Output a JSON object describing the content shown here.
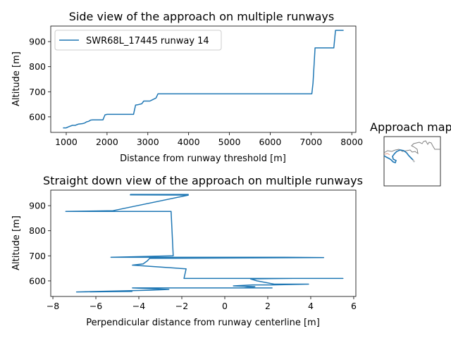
{
  "chart_data": [
    {
      "type": "line",
      "title": "Side view of the approach on multiple runways",
      "xlabel": "Distance from runway threshold [m]",
      "ylabel": "Altitude [m]",
      "xlim": [
        620,
        8100
      ],
      "ylim": [
        538,
        962
      ],
      "xticks": [
        1000,
        2000,
        3000,
        4000,
        5000,
        6000,
        7000,
        8000
      ],
      "yticks": [
        600,
        700,
        800,
        900
      ],
      "legend_position": "upper-left",
      "series": [
        {
          "name": "SWR68L_17445 runway 14",
          "color": "#1f77b4",
          "x": [
            920,
            1000,
            1050,
            1150,
            1220,
            1300,
            1400,
            1450,
            1500,
            1550,
            1600,
            1650,
            1900,
            1950,
            2000,
            2650,
            2700,
            2750,
            2850,
            2900,
            2950,
            3050,
            3100,
            3200,
            3250,
            4000,
            7020,
            7050,
            7100,
            7300,
            7560,
            7600,
            7800
          ],
          "y": [
            556,
            556,
            560,
            566,
            566,
            571,
            573,
            575,
            580,
            582,
            587,
            588,
            588,
            608,
            610,
            610,
            647,
            648,
            652,
            663,
            663,
            663,
            667,
            675,
            692,
            692,
            692,
            735,
            875,
            875,
            875,
            945,
            945
          ]
        }
      ]
    },
    {
      "type": "line",
      "title": "Straight down view of the approach on multiple runways",
      "xlabel": "Perpendicular distance from runway centerline [m]",
      "ylabel": "Altitude [m]",
      "xlim": [
        -8.1,
        6.1
      ],
      "ylim": [
        538,
        962
      ],
      "xticks": [
        -8,
        -6,
        -4,
        -2,
        0,
        2,
        4,
        6
      ],
      "yticks": [
        600,
        700,
        800,
        900
      ],
      "series": [
        {
          "color": "#1f77b4",
          "x": [
            -4.4,
            -3.0,
            -1.7,
            -4.4,
            -1.7,
            -5.2,
            -7.4,
            -2.6,
            -2.5,
            -2.4,
            -5.3,
            2.8,
            4.6,
            -3.5,
            -3.6,
            -3.8,
            -4.3,
            -1.8,
            -1.9,
            1.2,
            5.5,
            -0.1,
            3.2,
            1.2,
            1.5,
            2.3,
            3.9,
            2.2,
            1.3,
            0.4,
            1.4,
            0.9,
            2.2,
            -4.3,
            -2.6,
            -3.5,
            -6.9,
            -4.3
          ],
          "y": [
            945,
            945,
            945,
            943,
            942,
            880,
            877,
            877,
            877,
            700,
            694,
            694,
            693,
            690,
            680,
            668,
            663,
            648,
            610,
            610,
            610,
            610,
            610,
            608,
            600,
            587,
            587,
            584,
            584,
            580,
            577,
            572,
            572,
            572,
            566,
            563,
            556,
            558
          ]
        }
      ]
    },
    {
      "type": "line",
      "title": "Approach map",
      "inset": true
    }
  ]
}
